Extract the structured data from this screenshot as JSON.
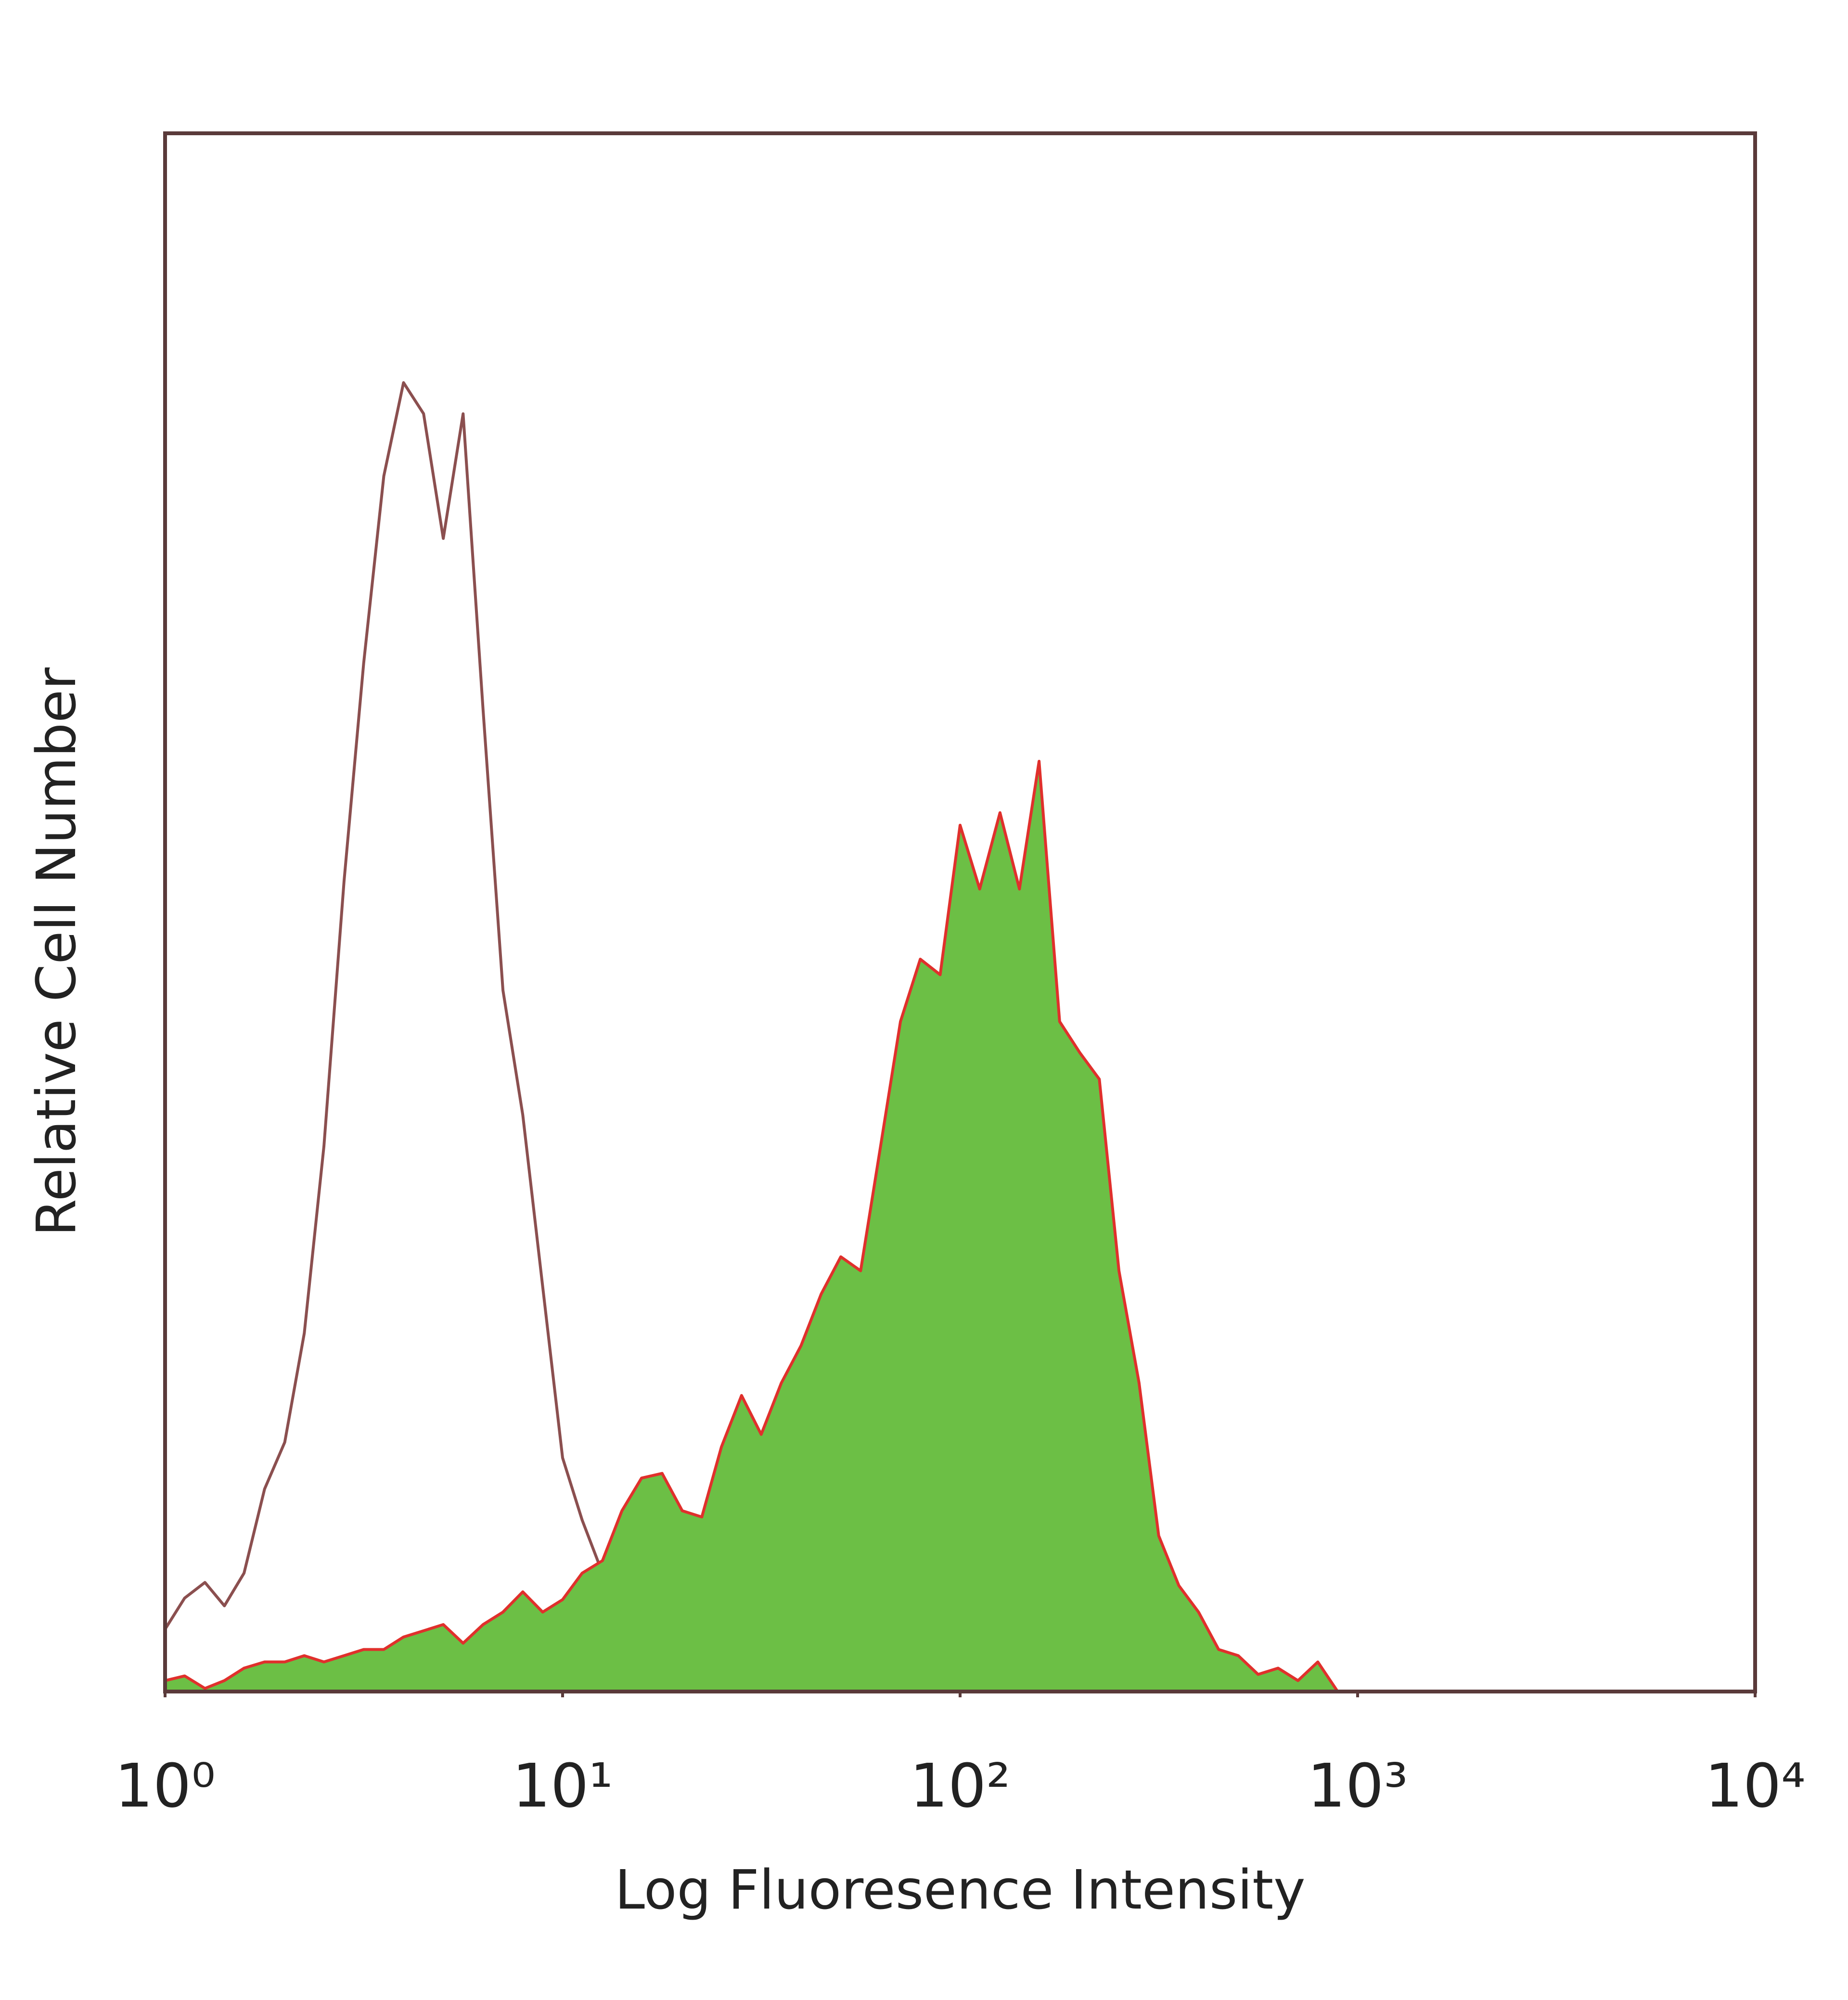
{
  "chart_data": {
    "type": "histogram",
    "xlabel": "Log Fluoresence Intensity",
    "ylabel": "Relative Cell Number",
    "xscale": "log",
    "xlim": [
      1,
      10000
    ],
    "ylim": [
      0,
      100
    ],
    "xticks": [
      {
        "value": 1,
        "label": "10⁰"
      },
      {
        "value": 10,
        "label": "10¹"
      },
      {
        "value": 100,
        "label": "10²"
      },
      {
        "value": 1000,
        "label": "10³"
      },
      {
        "value": 10000,
        "label": "10⁴"
      }
    ],
    "frame_color": "#5a3a3a",
    "x": [
      1,
      1.12,
      1.26,
      1.41,
      1.58,
      1.78,
      2,
      2.24,
      2.51,
      2.82,
      3.16,
      3.55,
      3.98,
      4.47,
      5.01,
      5.62,
      6.31,
      7.08,
      7.94,
      8.91,
      10,
      11.2,
      12.6,
      14.1,
      15.8,
      17.8,
      20,
      22.4,
      25.1,
      28.2,
      31.6,
      35.5,
      39.8,
      44.7,
      50.1,
      56.2,
      63.1,
      70.8,
      79.4,
      89.1,
      100,
      112,
      126,
      141,
      158,
      178,
      200,
      224,
      251,
      282,
      316,
      355,
      398,
      447,
      501,
      562,
      631,
      708,
      794,
      891,
      1000
    ],
    "series": [
      {
        "color": "#8b4f4f",
        "fill": false,
        "values": [
          4,
          6,
          7,
          5.5,
          7.6,
          13,
          16,
          23,
          35,
          52,
          66,
          78,
          84,
          82,
          74,
          82,
          63,
          45,
          37,
          26,
          15,
          11,
          7.6,
          5,
          3.5,
          3,
          2.7,
          3.2,
          3,
          2.6,
          2.3,
          1.6,
          1,
          0.8,
          0.7,
          0.4,
          0,
          0,
          0,
          0,
          0,
          0,
          0,
          0,
          0,
          0,
          0,
          0,
          0,
          0,
          0,
          0,
          0,
          0,
          0,
          0,
          0,
          0,
          0,
          0,
          0
        ]
      },
      {
        "color": "#6cbf45",
        "line_color": "#e0302c",
        "fill": true,
        "values": [
          0.7,
          1,
          0.2,
          0.7,
          1.5,
          1.9,
          1.9,
          2.3,
          1.9,
          2.3,
          2.7,
          2.7,
          3.5,
          3.9,
          4.3,
          3.1,
          4.3,
          5.1,
          6.4,
          5.1,
          5.9,
          7.6,
          8.4,
          11.6,
          13.7,
          14,
          11.6,
          11.2,
          15.7,
          19,
          16.5,
          19.8,
          22.2,
          25.5,
          27.9,
          27,
          35,
          43,
          47,
          46,
          55.6,
          51.5,
          56.4,
          51.5,
          59.7,
          43,
          41,
          39.3,
          27,
          19.8,
          10,
          6.8,
          5.1,
          2.7,
          2.3,
          1.1,
          1.5,
          0.7,
          1.9,
          0,
          0
        ]
      }
    ]
  }
}
